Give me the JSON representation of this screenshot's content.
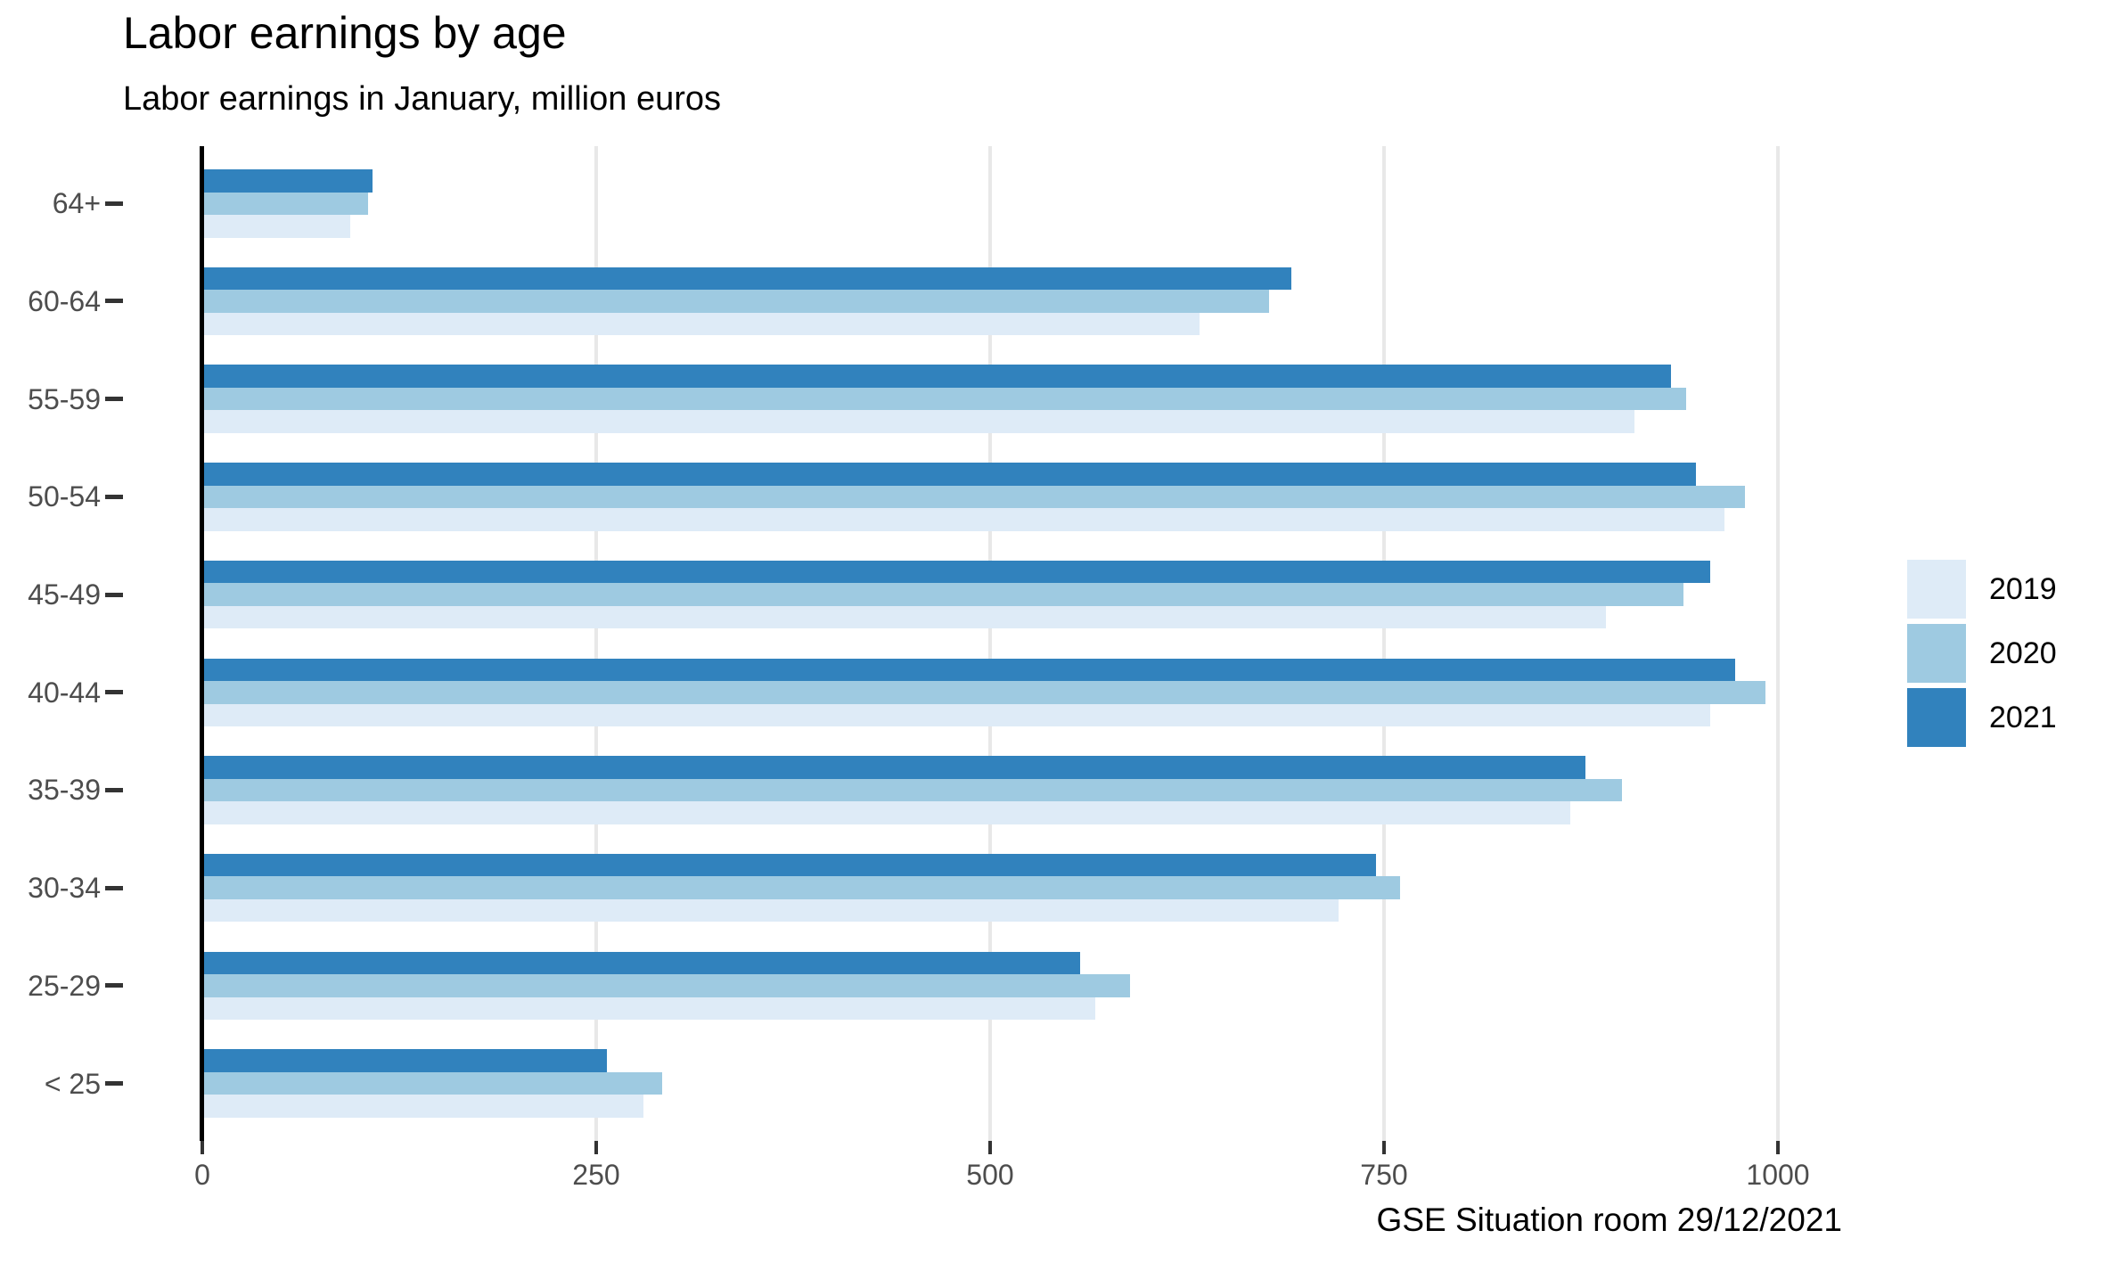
{
  "title": "Labor earnings by age",
  "subtitle": "Labor earnings in January, million euros",
  "caption": "GSE Situation room 29/12/2021",
  "chart_data": {
    "type": "bar",
    "orientation": "horizontal",
    "title": "Labor earnings by age",
    "subtitle": "Labor earnings in January, million euros",
    "caption": "GSE Situation room 29/12/2021",
    "xlabel": "",
    "ylabel": "",
    "categories": [
      "64+",
      "60-64",
      "55-59",
      "50-54",
      "45-49",
      "40-44",
      "35-39",
      "30-34",
      "25-29",
      "< 25"
    ],
    "series": [
      {
        "name": "2019",
        "color": "#deebf7",
        "values": [
          94,
          633,
          909,
          966,
          891,
          957,
          868,
          721,
          567,
          280
        ]
      },
      {
        "name": "2020",
        "color": "#9ecae1",
        "values": [
          105,
          677,
          942,
          979,
          940,
          992,
          901,
          760,
          589,
          292
        ]
      },
      {
        "name": "2021",
        "color": "#3182bd",
        "values": [
          108,
          691,
          932,
          948,
          957,
          973,
          878,
          745,
          557,
          257
        ]
      }
    ],
    "bar_order_top_to_bottom": [
      "2021",
      "2020",
      "2019"
    ],
    "x_ticks": [
      0,
      250,
      500,
      750,
      1000
    ],
    "xlim": [
      0,
      1059
    ],
    "grid": "vertical major gridlines only",
    "legend_position": "right",
    "colors": {
      "axis_line": "#000000",
      "tick_mark": "#333333",
      "tick_label": "#4d4d4d",
      "gridline": "#e8e8e8",
      "background": "#ffffff"
    }
  }
}
